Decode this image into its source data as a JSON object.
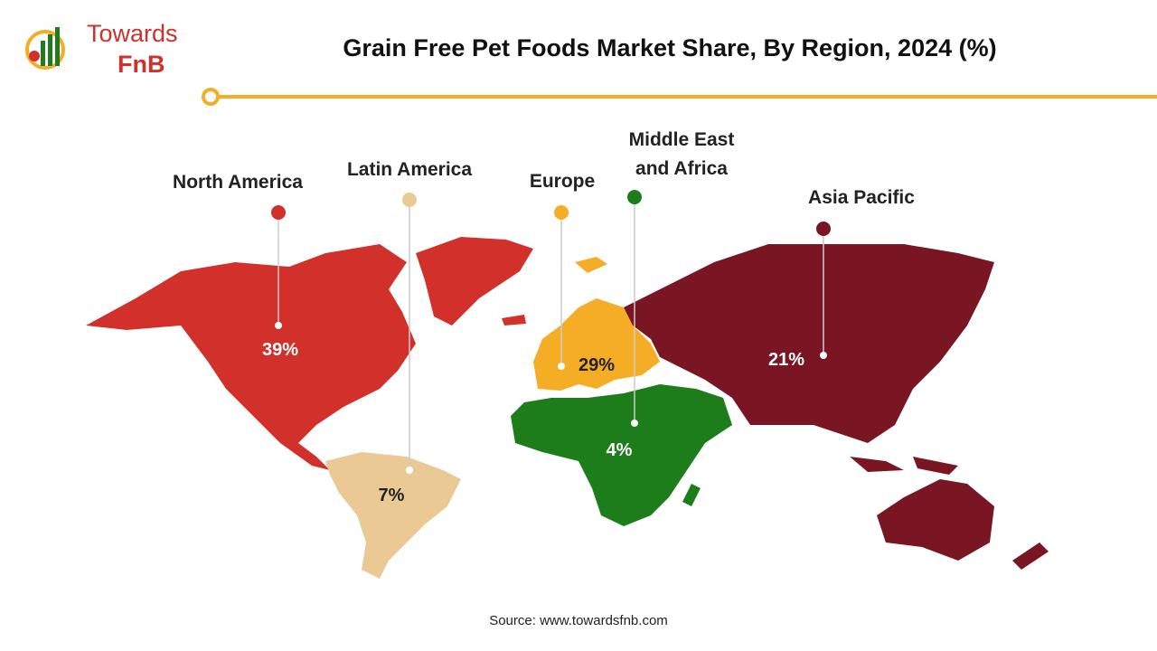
{
  "logo": {
    "top": "Towards",
    "bottom": "FnB"
  },
  "chart_data": {
    "type": "map",
    "title": "Grain Free Pet Foods Market Share, By Region, 2024 (%)",
    "categories": [
      "North America",
      "Latin America",
      "Europe",
      "Middle East and Africa",
      "Asia Pacific"
    ],
    "values": [
      39,
      7,
      29,
      4,
      21
    ],
    "value_labels": [
      "39%",
      "7%",
      "29%",
      "4%",
      "21%"
    ],
    "colors": [
      "#d1302b",
      "#ebc994",
      "#f5ad25",
      "#1c7d1a",
      "#7a1624"
    ]
  },
  "source": "Source: www.towardsfnb.com"
}
